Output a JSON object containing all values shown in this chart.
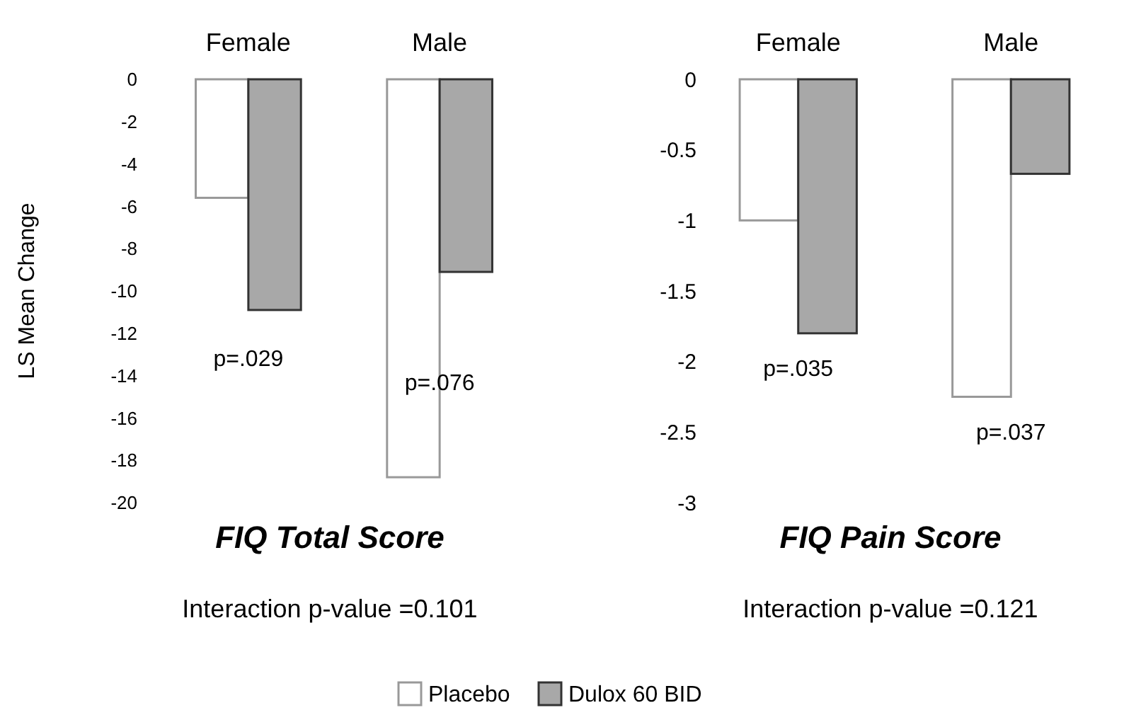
{
  "chart_data": [
    {
      "type": "bar",
      "title": "FIQ Total Score",
      "ylabel": "LS Mean Change",
      "categories": [
        "Female",
        "Male"
      ],
      "series": [
        {
          "name": "Placebo",
          "color": "#ffffff",
          "values": [
            -5.6,
            -18.8
          ]
        },
        {
          "name": "Dulox 60 BID",
          "color": "#a8a8a8",
          "values": [
            -10.9,
            -9.1
          ]
        }
      ],
      "ylim": [
        -20,
        0
      ],
      "yticks": [
        0,
        -2,
        -4,
        -6,
        -8,
        -10,
        -12,
        -14,
        -16,
        -18,
        -20
      ],
      "grid": false,
      "legend": "bottom",
      "annotations": [
        "p=.029",
        "p=.076",
        "Interaction p-value =0.101"
      ]
    },
    {
      "type": "bar",
      "title": "FIQ Pain Score",
      "categories": [
        "Female",
        "Male"
      ],
      "series": [
        {
          "color": "#ffffff",
          "values": [
            -1.0,
            -2.25
          ]
        },
        {
          "color": "#a8a8a8",
          "values": [
            -1.8,
            -0.67
          ]
        }
      ],
      "ylim": [
        -3,
        0
      ],
      "yticks": [
        0,
        -0.5,
        -1,
        -1.5,
        -2,
        -2.5,
        -3
      ],
      "grid": false,
      "annotations": [
        "p=.035",
        "p=.037",
        "Interaction p-value =0.121"
      ]
    }
  ]
}
